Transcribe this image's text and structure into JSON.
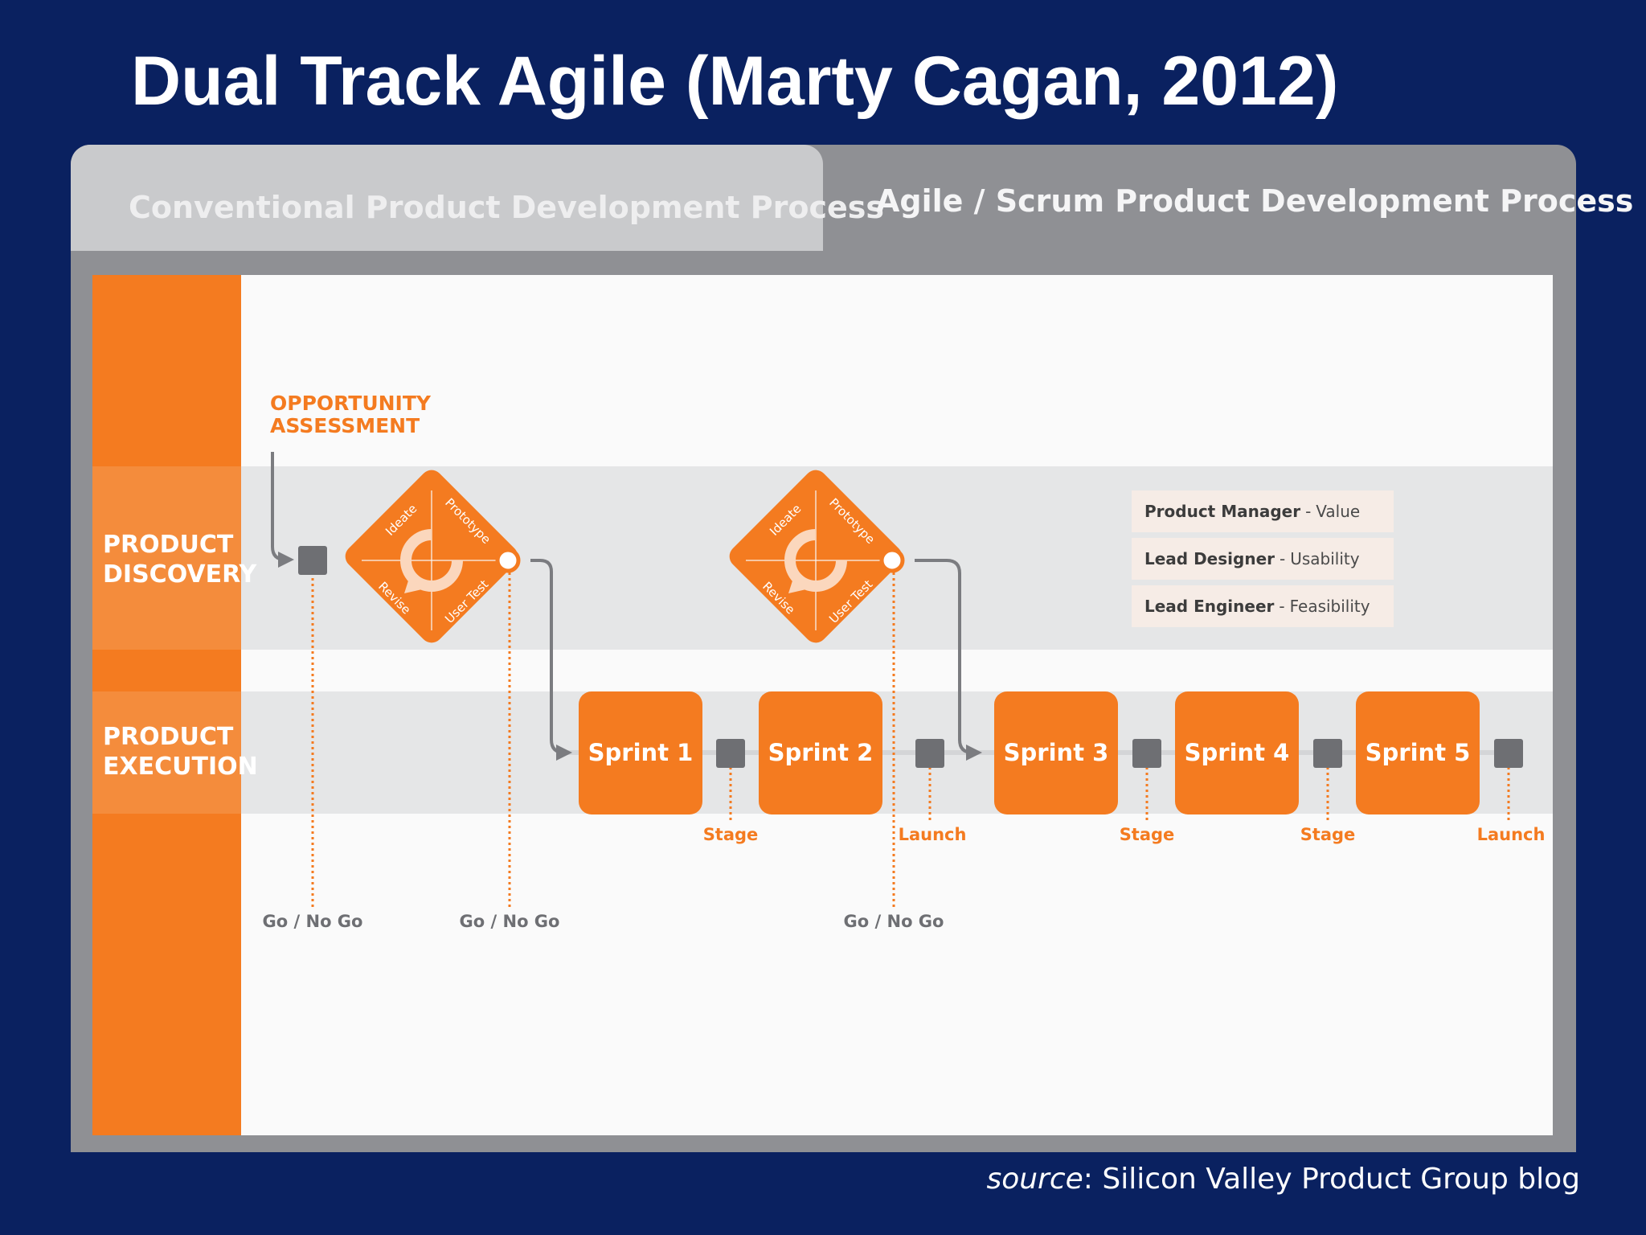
{
  "slide": {
    "title": "Dual Track Agile (Marty Cagan, 2012)",
    "source_label": "source",
    "source_text": ": Silicon Valley Product Group blog"
  },
  "tabs": {
    "conventional": "Conventional Product Development Process",
    "agile": "Agile / Scrum Product Development Process"
  },
  "lanes": {
    "discovery": [
      "PRODUCT",
      "DISCOVERY"
    ],
    "execution": [
      "PRODUCT",
      "EXECUTION"
    ]
  },
  "opportunity": [
    "OPPORTUNITY",
    "ASSESSMENT"
  ],
  "cycle_steps": {
    "ideate": "Ideate",
    "prototype": "Prototype",
    "user_test": "User Test",
    "revise": "Revise"
  },
  "sprints": [
    "Sprint 1",
    "Sprint 2",
    "Sprint 3",
    "Sprint 4",
    "Sprint 5"
  ],
  "milestones": [
    "Stage",
    "Launch",
    "Stage",
    "Stage",
    "Launch"
  ],
  "gates": [
    "Go / No Go",
    "Go / No Go",
    "Go / No Go"
  ],
  "roles": [
    {
      "role": "Product Manager",
      "focus": "Value"
    },
    {
      "role": "Lead Designer",
      "focus": "Usability"
    },
    {
      "role": "Lead Engineer",
      "focus": "Feasibility"
    }
  ],
  "colors": {
    "orange": "#f47b20",
    "gray_node": "#7b7c80",
    "navy": "#0a2160"
  }
}
